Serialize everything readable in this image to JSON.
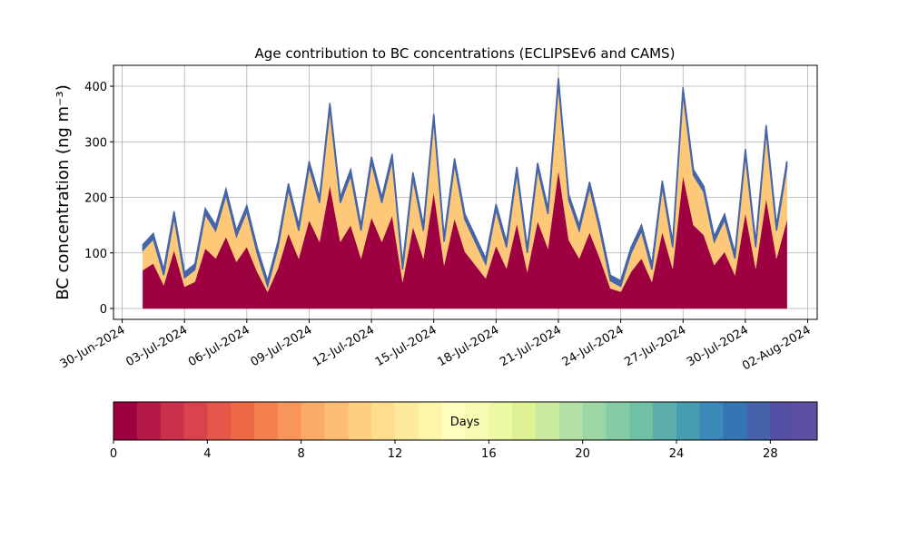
{
  "chart_data": {
    "type": "stacked_area",
    "title": "Age contribution to BC concentrations (ECLIPSEv6 and CAMS)",
    "y_label": "BC concentration (ng m⁻³)",
    "x": [
      "2024-07-01T00:00",
      "2024-07-01T12:00",
      "2024-07-02T00:00",
      "2024-07-02T12:00",
      "2024-07-03T00:00",
      "2024-07-03T12:00",
      "2024-07-04T00:00",
      "2024-07-04T12:00",
      "2024-07-05T00:00",
      "2024-07-05T12:00",
      "2024-07-06T00:00",
      "2024-07-06T12:00",
      "2024-07-07T00:00",
      "2024-07-07T12:00",
      "2024-07-08T00:00",
      "2024-07-08T12:00",
      "2024-07-09T00:00",
      "2024-07-09T12:00",
      "2024-07-10T00:00",
      "2024-07-10T12:00",
      "2024-07-11T00:00",
      "2024-07-11T12:00",
      "2024-07-12T00:00",
      "2024-07-12T12:00",
      "2024-07-13T00:00",
      "2024-07-13T12:00",
      "2024-07-14T00:00",
      "2024-07-14T12:00",
      "2024-07-15T00:00",
      "2024-07-15T12:00",
      "2024-07-16T00:00",
      "2024-07-16T12:00",
      "2024-07-17T00:00",
      "2024-07-17T12:00",
      "2024-07-18T00:00",
      "2024-07-18T12:00",
      "2024-07-19T00:00",
      "2024-07-19T12:00",
      "2024-07-20T00:00",
      "2024-07-20T12:00",
      "2024-07-21T00:00",
      "2024-07-21T12:00",
      "2024-07-22T00:00",
      "2024-07-22T12:00",
      "2024-07-23T00:00",
      "2024-07-23T12:00",
      "2024-07-24T00:00",
      "2024-07-24T12:00",
      "2024-07-25T00:00",
      "2024-07-25T12:00",
      "2024-07-26T00:00",
      "2024-07-26T12:00",
      "2024-07-27T00:00",
      "2024-07-27T12:00",
      "2024-07-28T00:00",
      "2024-07-28T12:00",
      "2024-07-29T00:00",
      "2024-07-29T12:00",
      "2024-07-30T00:00",
      "2024-07-30T12:00",
      "2024-07-31T00:00",
      "2024-07-31T12:00",
      "2024-08-01T00:00"
    ],
    "series": [
      {
        "color": "#9e0142",
        "values": [
          69,
          81,
          42,
          105,
          39,
          48,
          108,
          90,
          129,
          84,
          111,
          66,
          30,
          72,
          135,
          90,
          159,
          120,
          222,
          120,
          150,
          90,
          164,
          120,
          167,
          48,
          147,
          90,
          210,
          78,
          162,
          102,
          78,
          54,
          113,
          72,
          153,
          66,
          157,
          108,
          249,
          123,
          90,
          137,
          90,
          36,
          30,
          66,
          90,
          48,
          138,
          72,
          239,
          150,
          132,
          78,
          102,
          60,
          172,
          72,
          198,
          90,
          159
        ]
      },
      {
        "color": "#fdc877",
        "values": [
          36,
          44,
          18,
          60,
          16,
          22,
          62,
          50,
          76,
          46,
          64,
          34,
          10,
          38,
          80,
          50,
          96,
          70,
          138,
          70,
          90,
          50,
          99,
          70,
          101,
          22,
          88,
          50,
          130,
          42,
          98,
          58,
          42,
          26,
          65,
          38,
          92,
          34,
          95,
          62,
          156,
          72,
          50,
          81,
          50,
          14,
          10,
          34,
          50,
          22,
          82,
          38,
          149,
          90,
          78,
          42,
          58,
          30,
          105,
          38,
          122,
          50,
          96
        ]
      },
      {
        "color": "#4565a9",
        "values": [
          10,
          10,
          10,
          10,
          10,
          10,
          10,
          10,
          10,
          10,
          10,
          10,
          10,
          10,
          10,
          10,
          10,
          10,
          10,
          10,
          10,
          10,
          10,
          10,
          10,
          10,
          10,
          10,
          10,
          10,
          10,
          10,
          10,
          10,
          10,
          10,
          10,
          10,
          10,
          10,
          10,
          10,
          10,
          10,
          10,
          10,
          10,
          10,
          10,
          10,
          10,
          10,
          10,
          10,
          10,
          10,
          10,
          10,
          10,
          10,
          10,
          10,
          10
        ]
      }
    ],
    "xlim": [
      "2024-06-29T14:00",
      "2024-08-02T11:00"
    ],
    "xticks": [
      {
        "value": "2024-06-30T00:00",
        "label": "30-Jun-2024"
      },
      {
        "value": "2024-07-03T00:00",
        "label": "03-Jul-2024"
      },
      {
        "value": "2024-07-06T00:00",
        "label": "06-Jul-2024"
      },
      {
        "value": "2024-07-09T00:00",
        "label": "09-Jul-2024"
      },
      {
        "value": "2024-07-12T00:00",
        "label": "12-Jul-2024"
      },
      {
        "value": "2024-07-15T00:00",
        "label": "15-Jul-2024"
      },
      {
        "value": "2024-07-18T00:00",
        "label": "18-Jul-2024"
      },
      {
        "value": "2024-07-21T00:00",
        "label": "21-Jul-2024"
      },
      {
        "value": "2024-07-24T00:00",
        "label": "24-Jul-2024"
      },
      {
        "value": "2024-07-27T00:00",
        "label": "27-Jul-2024"
      },
      {
        "value": "2024-07-30T00:00",
        "label": "30-Jul-2024"
      },
      {
        "value": "2024-08-02T00:00",
        "label": "02-Aug-2024"
      }
    ],
    "ylim": [
      -19.6,
      437.6
    ],
    "yticks": [
      0,
      100,
      200,
      300,
      400
    ],
    "grid": true,
    "colorbar": {
      "label": "Days",
      "lim": [
        0,
        30
      ],
      "ticks": [
        0,
        4,
        8,
        12,
        16,
        20,
        24,
        28
      ],
      "colors": [
        "#9e0142",
        "#b41947",
        "#c9314a",
        "#d8434e",
        "#e4564a",
        "#ee6a45",
        "#f47e4c",
        "#f8955a",
        "#fbab66",
        "#fdbe73",
        "#fece80",
        "#fedd8d",
        "#feea9b",
        "#fef5ab",
        "#fffebe",
        "#f7fbb2",
        "#edf8a3",
        "#def293",
        "#c9e99e",
        "#b2e0a2",
        "#9bd6a4",
        "#84cca5",
        "#6fc0a5",
        "#5baea9",
        "#489cb0",
        "#3a89b9",
        "#3575b4",
        "#4562ab",
        "#5550a5",
        "#5e4fa2"
      ]
    }
  }
}
